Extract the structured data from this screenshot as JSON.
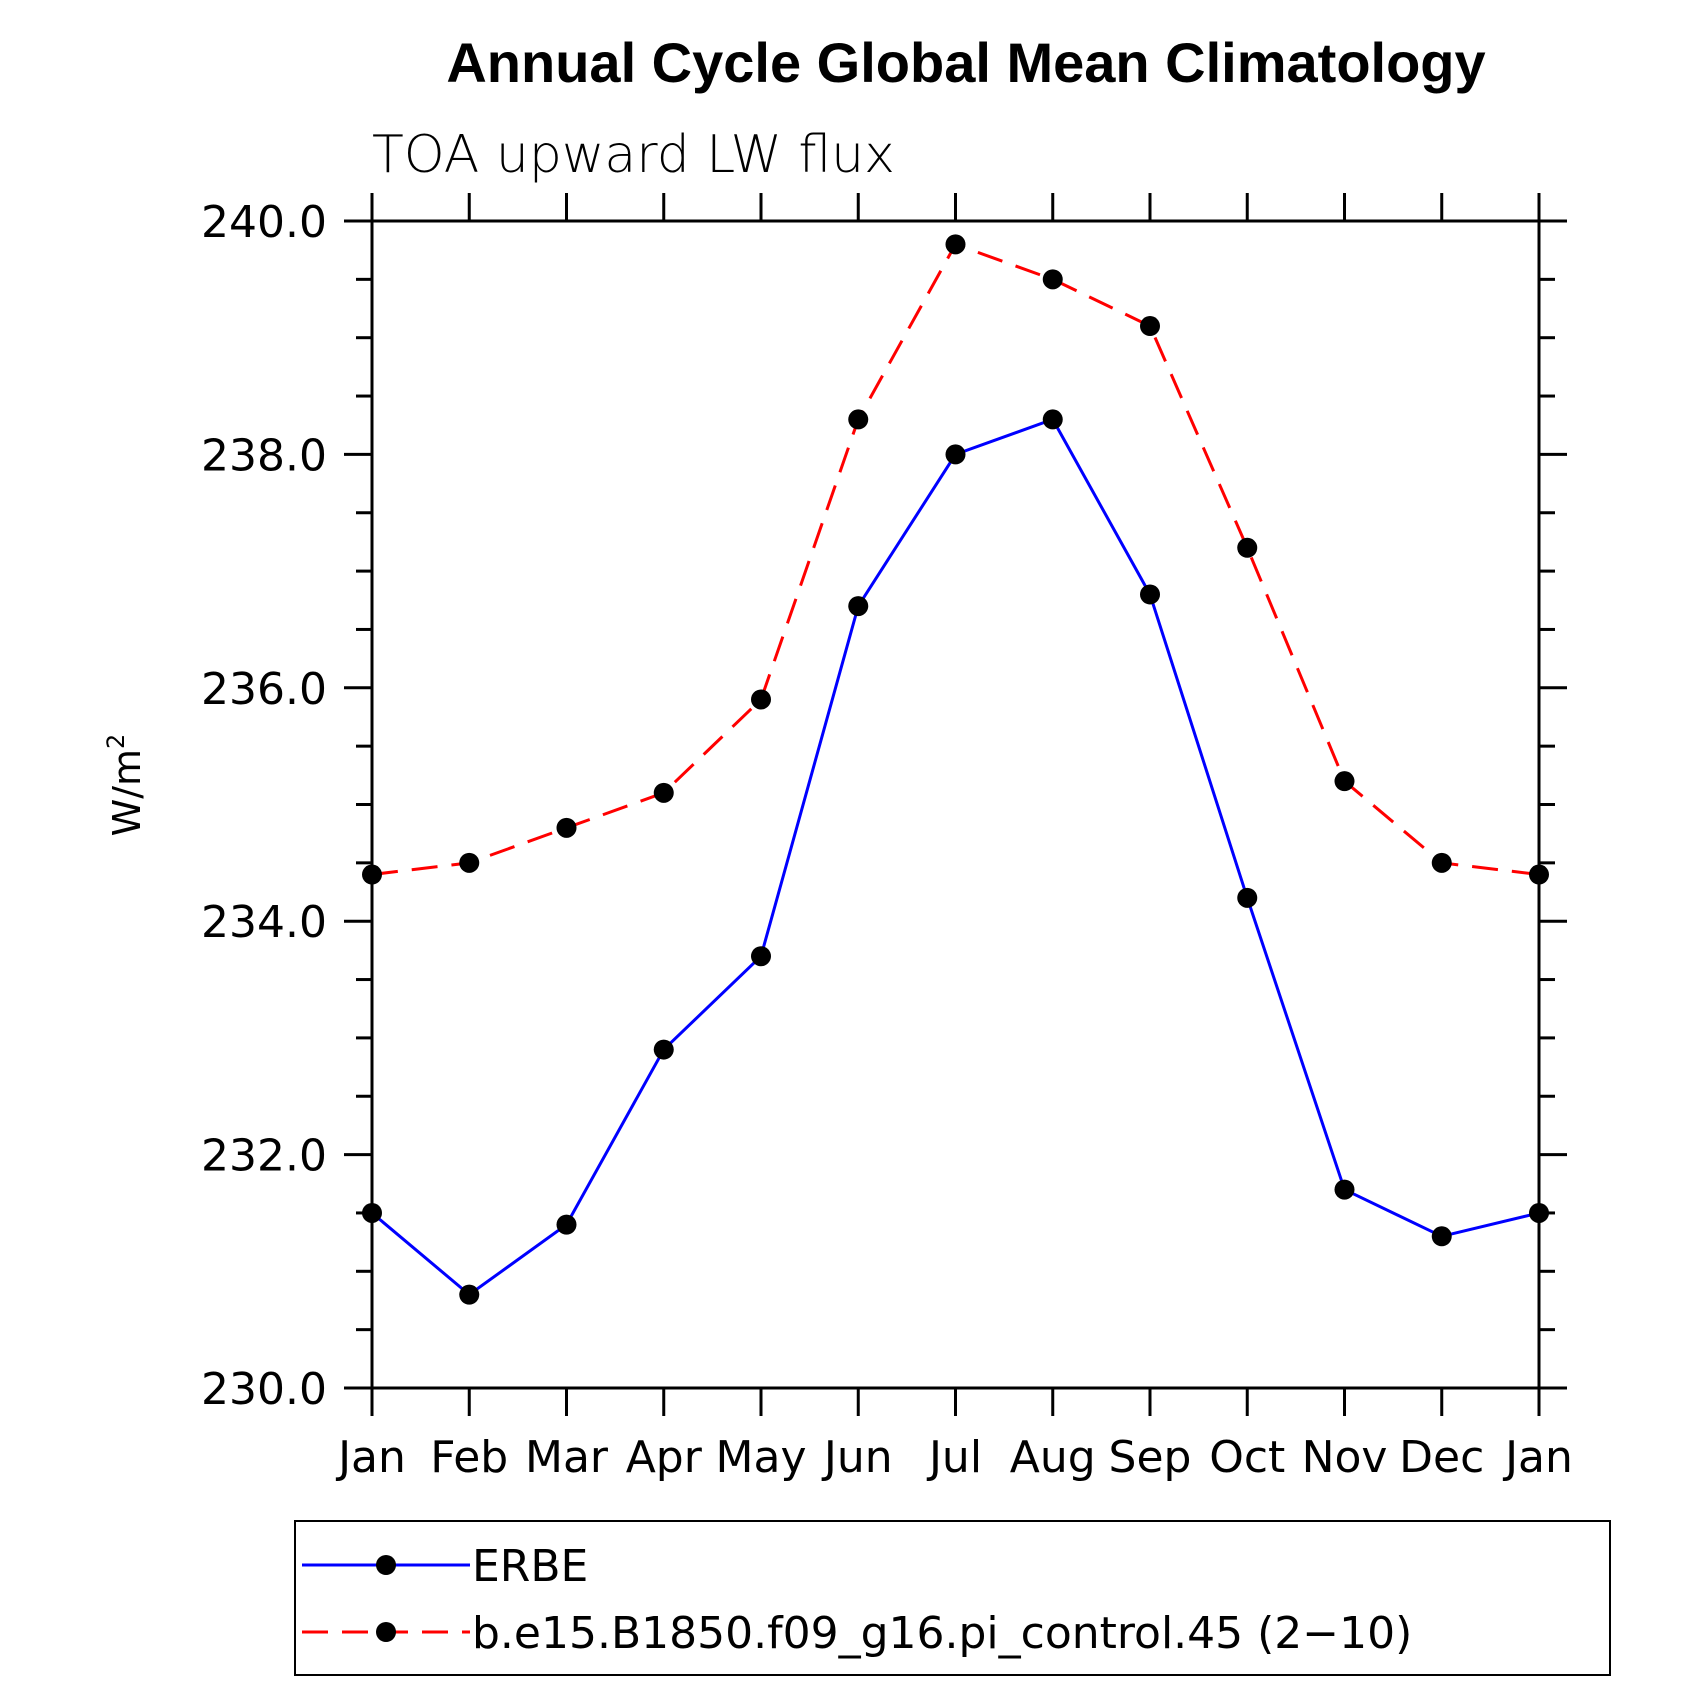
{
  "chart_data": {
    "type": "line",
    "title": "Annual Cycle Global Mean Climatology",
    "subtitle": "TOA upward LW flux",
    "ylabel": "W/m",
    "ylabel_superscript": "2",
    "xlabel": "",
    "categories": [
      "Jan",
      "Feb",
      "Mar",
      "Apr",
      "May",
      "Jun",
      "Jul",
      "Aug",
      "Sep",
      "Oct",
      "Nov",
      "Dec",
      "Jan"
    ],
    "ylim": [
      230.0,
      240.0
    ],
    "yticks": [
      "230.0",
      "232.0",
      "234.0",
      "236.0",
      "238.0",
      "240.0"
    ],
    "ytick_values": [
      230,
      232,
      234,
      236,
      238,
      240
    ],
    "grid": false,
    "legend_position": "bottom",
    "series": [
      {
        "name": "ERBE",
        "color": "#0000ff",
        "dash": "solid",
        "values": [
          231.5,
          230.8,
          231.4,
          232.9,
          233.7,
          236.7,
          238.0,
          238.3,
          236.8,
          234.2,
          231.7,
          231.3,
          231.5
        ]
      },
      {
        "name": "b.e15.B1850.f09_g16.pi_control.45 (2−10)",
        "color": "#ff0000",
        "dash": "dashed",
        "values": [
          234.4,
          234.5,
          234.8,
          235.1,
          235.9,
          238.3,
          239.8,
          239.5,
          239.1,
          237.2,
          235.2,
          234.5,
          234.4
        ]
      }
    ]
  }
}
